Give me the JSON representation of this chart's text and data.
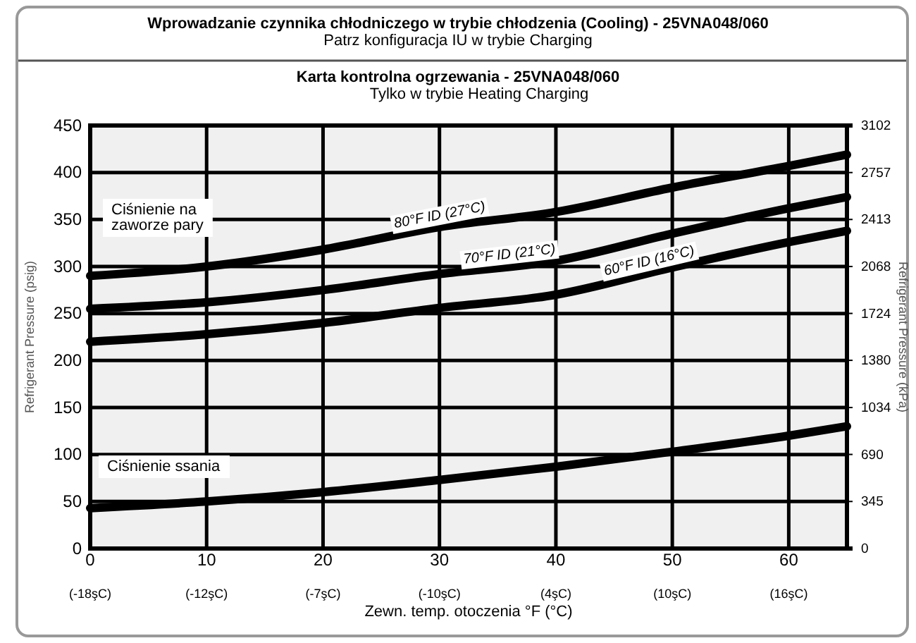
{
  "chart_data": {
    "type": "line",
    "title": "Karta kontrolna ogrzewania - 25VNA048/060",
    "subtitle": "Tylko w trybie Heating Charging",
    "xlabel": "Zewn. temp. otoczenia °F (°C)",
    "ylabel": "Refrigerant Pressure (psig)",
    "y2label": "Refrigerant Pressure (kPa)",
    "annotations": [
      "Wprowadzanie czynnika chłodniczego w trybie chłodzenia (Cooling) - 25VNA048/060",
      "Patrz konfiguracja IU w trybie Charging",
      "Ciśnienie na zaworze pary",
      "Ciśnienie ssania",
      "(-18şC)",
      "(-12şC)",
      "(-7şC)",
      "(-10şC)",
      "(4şC)",
      "(10şC)",
      "(16şC)"
    ],
    "x": [
      0,
      10,
      20,
      30,
      40,
      50,
      60,
      65
    ],
    "series": [
      {
        "name": "80°F ID (27°C)",
        "color": "#000000",
        "values": [
          290,
          300,
          318,
          342,
          358,
          384,
          407,
          419
        ]
      },
      {
        "name": "70°F ID (21°C)",
        "color": "#000000",
        "values": [
          255,
          262,
          275,
          292,
          306,
          335,
          362,
          374
        ]
      },
      {
        "name": "60°F ID (16°C)",
        "color": "#000000",
        "values": [
          220,
          228,
          240,
          256,
          270,
          299,
          326,
          338
        ]
      },
      {
        "color": "#000000",
        "values": [
          43,
          50,
          60,
          73,
          87,
          103,
          120,
          130
        ]
      }
    ],
    "xlim": [
      0,
      65
    ],
    "ylim": [
      0,
      450
    ],
    "y2lim": [
      0,
      3102
    ],
    "xticks": [
      0,
      10,
      20,
      30,
      40,
      50,
      60
    ],
    "yticks": [
      0,
      50,
      100,
      150,
      200,
      250,
      300,
      350,
      400,
      450
    ],
    "y2ticks": [
      0,
      345,
      690,
      1034,
      1380,
      1724,
      2068,
      2413,
      2757,
      3102
    ],
    "grid": true,
    "line_style": "solid",
    "marker": "none",
    "legend": false
  }
}
